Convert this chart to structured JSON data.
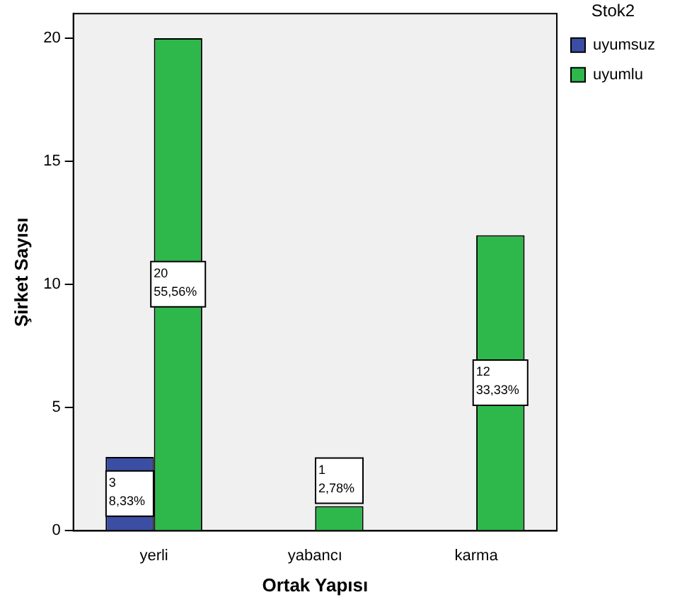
{
  "chart_data": {
    "type": "bar",
    "xlabel": "Ortak Yapısı",
    "ylabel": "Şirket Sayısı",
    "legend_title": "Stok2",
    "categories": [
      "yerli",
      "yabancı",
      "karma"
    ],
    "series": [
      {
        "name": "uyumsuz",
        "color": "#3b4ea3",
        "values": [
          3,
          null,
          null
        ],
        "value_labels": [
          "3\n8,33%",
          null,
          null
        ]
      },
      {
        "name": "uyumlu",
        "color": "#2eb84b",
        "values": [
          20,
          1,
          12
        ],
        "value_labels": [
          "20\n55,56%",
          "1\n2,78%",
          "12\n33,33%"
        ]
      }
    ],
    "ylim": [
      0,
      21
    ],
    "yticks": [
      0,
      5,
      10,
      15,
      20
    ],
    "grid": false,
    "legend": "top right"
  }
}
